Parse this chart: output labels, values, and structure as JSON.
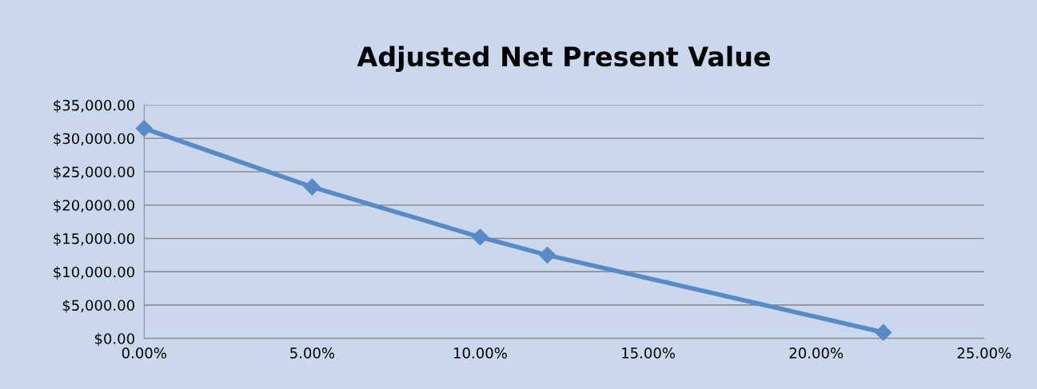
{
  "chart_data": {
    "type": "line",
    "title": "Adjusted Net Present Value",
    "x": [
      0,
      5,
      10,
      12,
      22
    ],
    "series": [
      {
        "color": "#5a8ac6",
        "values": [
          31500,
          22700,
          15200,
          12500,
          900
        ]
      }
    ],
    "xlim": [
      0,
      25
    ],
    "xticks": [
      {
        "value": 0,
        "label": "0.00%"
      },
      {
        "value": 5,
        "label": "5.00%"
      },
      {
        "value": 10,
        "label": "10.00%"
      },
      {
        "value": 15,
        "label": "15.00%"
      },
      {
        "value": 20,
        "label": "20.00%"
      },
      {
        "value": 25,
        "label": "25.00%"
      }
    ],
    "ylim": [
      0,
      35000
    ],
    "yticks": [
      {
        "value": 0,
        "label": "$0.00"
      },
      {
        "value": 5000,
        "label": "$5,000.00"
      },
      {
        "value": 10000,
        "label": "$10,000.00"
      },
      {
        "value": 15000,
        "label": "$15,000.00"
      },
      {
        "value": 20000,
        "label": "$20,000.00"
      },
      {
        "value": 25000,
        "label": "$25,000.00"
      },
      {
        "value": 30000,
        "label": "$30,000.00"
      },
      {
        "value": 35000,
        "label": "$35,000.00"
      }
    ],
    "grid": "y",
    "marker": "diamond",
    "line_style": "solid",
    "legend": false
  }
}
